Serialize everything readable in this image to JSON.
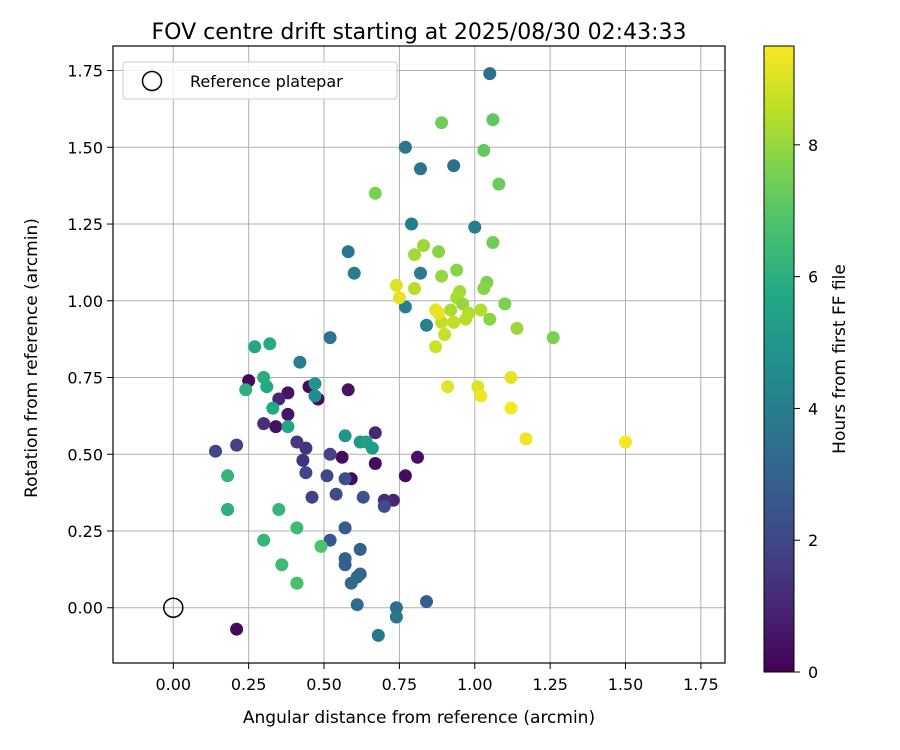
{
  "chart_data": {
    "type": "scatter",
    "title": "FOV centre drift starting at 2025/08/30 02:43:33",
    "xlabel": "Angular distance from reference (arcmin)",
    "ylabel": "Rotation from reference (arcmin)",
    "xlim": [
      -0.2,
      1.83
    ],
    "ylim": [
      -0.18,
      1.83
    ],
    "xticks": [
      "0.00",
      "0.25",
      "0.50",
      "0.75",
      "1.00",
      "1.25",
      "1.50",
      "1.75"
    ],
    "yticks": [
      "0.00",
      "0.25",
      "0.50",
      "0.75",
      "1.00",
      "1.25",
      "1.50",
      "1.75"
    ],
    "grid": true,
    "legend": {
      "placement": "top-left",
      "entries": [
        "Reference platepar"
      ]
    },
    "reference_point": {
      "x": 0.0,
      "y": 0.0
    },
    "colorbar": {
      "label": "Hours from first FF file",
      "range": [
        0,
        9.5
      ],
      "ticks": [
        "0",
        "2",
        "4",
        "6",
        "8"
      ],
      "colormap": "viridis"
    },
    "points": [
      {
        "x": 0.21,
        "y": -0.07,
        "c": 0.2
      },
      {
        "x": 0.25,
        "y": 0.74,
        "c": 0.2
      },
      {
        "x": 0.34,
        "y": 0.59,
        "c": 0.4
      },
      {
        "x": 0.38,
        "y": 0.63,
        "c": 0.5
      },
      {
        "x": 0.38,
        "y": 0.7,
        "c": 0.5
      },
      {
        "x": 0.45,
        "y": 0.72,
        "c": 0.3
      },
      {
        "x": 0.48,
        "y": 0.68,
        "c": 0.3
      },
      {
        "x": 0.58,
        "y": 0.71,
        "c": 0.5
      },
      {
        "x": 0.56,
        "y": 0.49,
        "c": 0.3
      },
      {
        "x": 0.59,
        "y": 0.42,
        "c": 0.2
      },
      {
        "x": 0.67,
        "y": 0.47,
        "c": 0.3
      },
      {
        "x": 0.77,
        "y": 0.43,
        "c": 0.3
      },
      {
        "x": 0.81,
        "y": 0.49,
        "c": 0.4
      },
      {
        "x": 0.67,
        "y": 0.57,
        "c": 1.0
      },
      {
        "x": 0.73,
        "y": 0.35,
        "c": 1.0
      },
      {
        "x": 0.7,
        "y": 0.35,
        "c": 1.2
      },
      {
        "x": 0.35,
        "y": 0.68,
        "c": 1.0
      },
      {
        "x": 0.3,
        "y": 0.6,
        "c": 1.3
      },
      {
        "x": 0.43,
        "y": 0.48,
        "c": 1.3
      },
      {
        "x": 0.44,
        "y": 0.52,
        "c": 1.4
      },
      {
        "x": 0.41,
        "y": 0.54,
        "c": 1.6
      },
      {
        "x": 0.21,
        "y": 0.53,
        "c": 1.8
      },
      {
        "x": 0.14,
        "y": 0.51,
        "c": 2.0
      },
      {
        "x": 0.46,
        "y": 0.36,
        "c": 1.8
      },
      {
        "x": 0.44,
        "y": 0.44,
        "c": 2.0
      },
      {
        "x": 0.51,
        "y": 0.43,
        "c": 2.0
      },
      {
        "x": 0.52,
        "y": 0.5,
        "c": 1.9
      },
      {
        "x": 0.54,
        "y": 0.37,
        "c": 2.2
      },
      {
        "x": 0.57,
        "y": 0.42,
        "c": 2.3
      },
      {
        "x": 0.63,
        "y": 0.36,
        "c": 2.4
      },
      {
        "x": 0.7,
        "y": 0.33,
        "c": 2.2
      },
      {
        "x": 0.52,
        "y": 0.22,
        "c": 2.6
      },
      {
        "x": 0.57,
        "y": 0.26,
        "c": 2.7
      },
      {
        "x": 0.57,
        "y": 0.14,
        "c": 2.8
      },
      {
        "x": 0.57,
        "y": 0.16,
        "c": 2.9
      },
      {
        "x": 0.62,
        "y": 0.19,
        "c": 3.0
      },
      {
        "x": 0.62,
        "y": 0.11,
        "c": 3.0
      },
      {
        "x": 0.61,
        "y": 0.1,
        "c": 3.1
      },
      {
        "x": 0.59,
        "y": 0.08,
        "c": 3.3
      },
      {
        "x": 0.61,
        "y": 0.01,
        "c": 3.4
      },
      {
        "x": 0.74,
        "y": 0.0,
        "c": 3.5
      },
      {
        "x": 0.74,
        "y": -0.03,
        "c": 3.6
      },
      {
        "x": 0.68,
        "y": -0.09,
        "c": 3.8
      },
      {
        "x": 0.84,
        "y": 0.02,
        "c": 2.8
      },
      {
        "x": 0.52,
        "y": 0.88,
        "c": 3.6
      },
      {
        "x": 0.42,
        "y": 0.8,
        "c": 4.0
      },
      {
        "x": 0.58,
        "y": 1.16,
        "c": 3.8
      },
      {
        "x": 0.6,
        "y": 1.09,
        "c": 3.9
      },
      {
        "x": 0.77,
        "y": 1.5,
        "c": 3.7
      },
      {
        "x": 0.82,
        "y": 1.43,
        "c": 3.6
      },
      {
        "x": 0.93,
        "y": 1.44,
        "c": 3.5
      },
      {
        "x": 1.05,
        "y": 1.74,
        "c": 3.5
      },
      {
        "x": 0.79,
        "y": 1.25,
        "c": 3.9
      },
      {
        "x": 1.0,
        "y": 1.24,
        "c": 3.9
      },
      {
        "x": 0.82,
        "y": 1.09,
        "c": 3.9
      },
      {
        "x": 0.77,
        "y": 0.98,
        "c": 4.0
      },
      {
        "x": 0.84,
        "y": 0.92,
        "c": 4.2
      },
      {
        "x": 0.47,
        "y": 0.69,
        "c": 4.6
      },
      {
        "x": 0.47,
        "y": 0.73,
        "c": 4.9
      },
      {
        "x": 0.57,
        "y": 0.56,
        "c": 5.0
      },
      {
        "x": 0.62,
        "y": 0.54,
        "c": 5.1
      },
      {
        "x": 0.64,
        "y": 0.54,
        "c": 5.3
      },
      {
        "x": 0.66,
        "y": 0.52,
        "c": 5.2
      },
      {
        "x": 0.38,
        "y": 0.59,
        "c": 5.6
      },
      {
        "x": 0.33,
        "y": 0.65,
        "c": 5.7
      },
      {
        "x": 0.31,
        "y": 0.72,
        "c": 5.7
      },
      {
        "x": 0.3,
        "y": 0.75,
        "c": 5.9
      },
      {
        "x": 0.24,
        "y": 0.71,
        "c": 6.0
      },
      {
        "x": 0.27,
        "y": 0.85,
        "c": 5.6
      },
      {
        "x": 0.32,
        "y": 0.86,
        "c": 5.8
      },
      {
        "x": 0.18,
        "y": 0.43,
        "c": 6.2
      },
      {
        "x": 0.18,
        "y": 0.32,
        "c": 6.1
      },
      {
        "x": 0.18,
        "y": 0.32,
        "c": 6.0
      },
      {
        "x": 0.35,
        "y": 0.32,
        "c": 6.3
      },
      {
        "x": 0.41,
        "y": 0.26,
        "c": 6.4
      },
      {
        "x": 0.3,
        "y": 0.22,
        "c": 6.3
      },
      {
        "x": 0.49,
        "y": 0.2,
        "c": 6.8
      },
      {
        "x": 0.36,
        "y": 0.14,
        "c": 6.5
      },
      {
        "x": 0.41,
        "y": 0.08,
        "c": 6.6
      },
      {
        "x": 0.41,
        "y": 0.08,
        "c": 6.7
      },
      {
        "x": 0.67,
        "y": 1.35,
        "c": 7.6
      },
      {
        "x": 0.89,
        "y": 1.58,
        "c": 7.4
      },
      {
        "x": 1.06,
        "y": 1.59,
        "c": 7.1
      },
      {
        "x": 1.03,
        "y": 1.49,
        "c": 7.2
      },
      {
        "x": 1.08,
        "y": 1.38,
        "c": 7.3
      },
      {
        "x": 1.06,
        "y": 1.19,
        "c": 7.4
      },
      {
        "x": 0.83,
        "y": 1.18,
        "c": 8.1
      },
      {
        "x": 0.88,
        "y": 1.16,
        "c": 7.8
      },
      {
        "x": 0.8,
        "y": 1.15,
        "c": 8.2
      },
      {
        "x": 0.94,
        "y": 1.1,
        "c": 7.8
      },
      {
        "x": 0.89,
        "y": 1.08,
        "c": 8.0
      },
      {
        "x": 1.04,
        "y": 1.06,
        "c": 7.6
      },
      {
        "x": 1.03,
        "y": 1.04,
        "c": 7.8
      },
      {
        "x": 0.95,
        "y": 1.03,
        "c": 8.2
      },
      {
        "x": 0.8,
        "y": 1.04,
        "c": 8.5
      },
      {
        "x": 0.94,
        "y": 1.01,
        "c": 8.3
      },
      {
        "x": 1.1,
        "y": 0.99,
        "c": 7.6
      },
      {
        "x": 0.96,
        "y": 0.99,
        "c": 8.0
      },
      {
        "x": 0.98,
        "y": 0.96,
        "c": 8.4
      },
      {
        "x": 0.92,
        "y": 0.97,
        "c": 8.3
      },
      {
        "x": 1.02,
        "y": 0.97,
        "c": 8.4
      },
      {
        "x": 1.05,
        "y": 0.94,
        "c": 7.8
      },
      {
        "x": 0.97,
        "y": 0.94,
        "c": 8.5
      },
      {
        "x": 0.93,
        "y": 0.93,
        "c": 8.6
      },
      {
        "x": 0.89,
        "y": 0.93,
        "c": 8.6
      },
      {
        "x": 1.14,
        "y": 0.91,
        "c": 8.1
      },
      {
        "x": 1.26,
        "y": 0.88,
        "c": 7.6
      },
      {
        "x": 0.9,
        "y": 0.89,
        "c": 8.7
      },
      {
        "x": 0.87,
        "y": 0.85,
        "c": 8.8
      },
      {
        "x": 0.74,
        "y": 1.05,
        "c": 9.0
      },
      {
        "x": 0.75,
        "y": 1.01,
        "c": 9.1
      },
      {
        "x": 0.87,
        "y": 0.97,
        "c": 9.1
      },
      {
        "x": 0.88,
        "y": 0.96,
        "c": 9.2
      },
      {
        "x": 0.91,
        "y": 0.72,
        "c": 9.1
      },
      {
        "x": 1.01,
        "y": 0.72,
        "c": 9.0
      },
      {
        "x": 1.02,
        "y": 0.69,
        "c": 9.3
      },
      {
        "x": 1.12,
        "y": 0.75,
        "c": 9.1
      },
      {
        "x": 1.12,
        "y": 0.65,
        "c": 9.4
      },
      {
        "x": 1.17,
        "y": 0.55,
        "c": 9.3
      },
      {
        "x": 1.5,
        "y": 0.54,
        "c": 9.4
      }
    ]
  }
}
